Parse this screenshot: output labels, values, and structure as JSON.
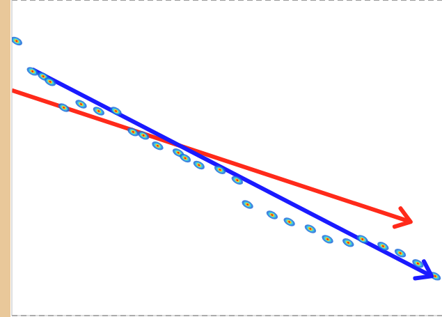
{
  "chart_data": {
    "type": "scatter",
    "xlim": [
      0,
      100
    ],
    "ylim": [
      0,
      100
    ],
    "yticks": [
      25,
      50,
      75
    ],
    "grid": true,
    "tick_labels": false,
    "series": [
      {
        "type": "scatter",
        "color": "#1e6fd9",
        "x": [
          1.1,
          4.8,
          7.3,
          8.9,
          12.1,
          16.1,
          20.2,
          24.2,
          28.2,
          30.6,
          33.9,
          38.7,
          40.3,
          43.5,
          48.4,
          52.4,
          54.8,
          60.5,
          64.5,
          69.4,
          73.4,
          78.2,
          81.5,
          86.3,
          90.3,
          94.4,
          98.4
        ],
        "values": [
          87,
          77.4,
          75.8,
          74.1,
          65.9,
          67,
          64.8,
          64.8,
          58.2,
          57.1,
          53.8,
          51.6,
          49.9,
          47.7,
          46.2,
          42.9,
          35.2,
          31.9,
          29.7,
          27.5,
          24.2,
          23.1,
          24.2,
          22,
          19.8,
          16.5,
          12.5
        ]
      },
      {
        "type": "line",
        "color": "#ff2a1a",
        "x": [
          0,
          92.7
        ],
        "values": [
          71.4,
          29.7
        ],
        "marker": "arrow"
      },
      {
        "type": "line",
        "color": "#1a1aff",
        "x": [
          4.8,
          97.6
        ],
        "values": [
          78,
          12.5
        ],
        "marker": "arrow"
      }
    ]
  }
}
